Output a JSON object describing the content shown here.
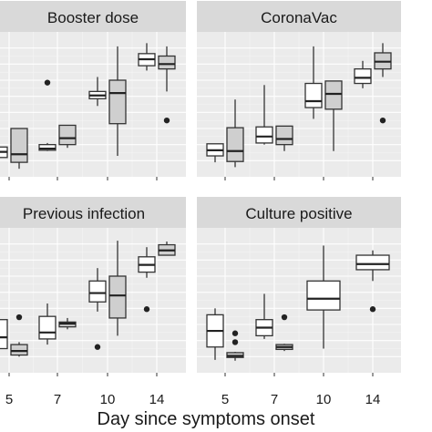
{
  "chart_data": {
    "type": "boxplot",
    "xlabel": "Day since symptoms onset",
    "x_categories": [
      "5",
      "7",
      "10",
      "14"
    ],
    "series_fills": {
      "a": "#ffffff",
      "b": "#cfcfcf"
    },
    "grid": true,
    "panels": [
      {
        "title": "Booster dose",
        "boxes": [
          {
            "day": "5",
            "group": "a",
            "min": 1.8,
            "q1": 2.2,
            "median": 2.55,
            "q3": 2.85,
            "max": 3.3,
            "outliers": []
          },
          {
            "day": "5",
            "group": "b",
            "min": 1.5,
            "q1": 1.9,
            "median": 2.4,
            "q3": 4.0,
            "max": 4.0,
            "outliers": []
          },
          {
            "day": "7",
            "group": "a",
            "min": 2.6,
            "q1": 2.65,
            "median": 2.75,
            "q3": 3.0,
            "max": 3.1,
            "outliers": [
              6.85
            ]
          },
          {
            "day": "7",
            "group": "b",
            "min": 2.8,
            "q1": 3.0,
            "median": 3.4,
            "q3": 4.2,
            "max": 4.2,
            "outliers": []
          },
          {
            "day": "10",
            "group": "a",
            "min": 5.4,
            "q1": 5.85,
            "median": 6.05,
            "q3": 6.3,
            "max": 7.2,
            "outliers": []
          },
          {
            "day": "10",
            "group": "b",
            "min": 2.3,
            "q1": 4.3,
            "median": 6.2,
            "q3": 7.0,
            "max": 9.1,
            "outliers": []
          },
          {
            "day": "14",
            "group": "a",
            "min": 7.6,
            "q1": 7.9,
            "median": 8.3,
            "q3": 8.65,
            "max": 9.3,
            "outliers": []
          },
          {
            "day": "14",
            "group": "b",
            "min": 6.3,
            "q1": 7.7,
            "median": 8.0,
            "q3": 8.5,
            "max": 9.1,
            "outliers": [
              4.5
            ]
          }
        ]
      },
      {
        "title": "CoronaVac",
        "boxes": [
          {
            "day": "5",
            "group": "a",
            "min": 1.9,
            "q1": 2.3,
            "median": 2.65,
            "q3": 3.05,
            "max": 3.05,
            "outliers": []
          },
          {
            "day": "5",
            "group": "b",
            "min": 1.6,
            "q1": 1.95,
            "median": 2.6,
            "q3": 4.05,
            "max": 5.8,
            "outliers": []
          },
          {
            "day": "7",
            "group": "a",
            "min": 3.0,
            "q1": 3.1,
            "median": 3.5,
            "q3": 4.1,
            "max": 6.7,
            "outliers": []
          },
          {
            "day": "7",
            "group": "b",
            "min": 2.6,
            "q1": 3.0,
            "median": 3.35,
            "q3": 4.15,
            "max": 4.15,
            "outliers": []
          },
          {
            "day": "10",
            "group": "a",
            "min": 4.6,
            "q1": 5.3,
            "median": 5.7,
            "q3": 6.8,
            "max": 9.1,
            "outliers": []
          },
          {
            "day": "10",
            "group": "b",
            "min": 2.6,
            "q1": 5.2,
            "median": 6.15,
            "q3": 6.95,
            "max": 6.95,
            "outliers": []
          },
          {
            "day": "14",
            "group": "a",
            "min": 6.5,
            "q1": 6.8,
            "median": 7.15,
            "q3": 7.7,
            "max": 8.2,
            "outliers": []
          },
          {
            "day": "14",
            "group": "b",
            "min": 7.2,
            "q1": 7.7,
            "median": 8.15,
            "q3": 8.7,
            "max": 9.3,
            "outliers": [
              4.5
            ]
          }
        ]
      },
      {
        "title": "Previous infection",
        "boxes": [
          {
            "day": "5",
            "group": "a",
            "min": 1.8,
            "q1": 2.5,
            "median": 3.2,
            "q3": 4.3,
            "max": 4.3,
            "outliers": []
          },
          {
            "day": "5",
            "group": "b",
            "min": 2.0,
            "q1": 2.1,
            "median": 2.35,
            "q3": 2.75,
            "max": 2.9,
            "outliers": [
              4.45
            ]
          },
          {
            "day": "7",
            "group": "a",
            "min": 2.75,
            "q1": 3.1,
            "median": 3.5,
            "q3": 4.5,
            "max": 5.3,
            "outliers": []
          },
          {
            "day": "7",
            "group": "b",
            "min": 3.7,
            "q1": 3.85,
            "median": 4.05,
            "q3": 4.15,
            "max": 4.4,
            "outliers": []
          },
          {
            "day": "10",
            "group": "a",
            "min": 4.8,
            "q1": 5.4,
            "median": 5.95,
            "q3": 6.7,
            "max": 7.5,
            "outliers": [
              2.6
            ]
          },
          {
            "day": "10",
            "group": "b",
            "min": 3.3,
            "q1": 4.4,
            "median": 5.8,
            "q3": 7.0,
            "max": 9.2,
            "outliers": []
          },
          {
            "day": "14",
            "group": "a",
            "min": 6.9,
            "q1": 7.25,
            "median": 7.7,
            "q3": 8.2,
            "max": 8.8,
            "outliers": [
              4.95
            ]
          },
          {
            "day": "14",
            "group": "b",
            "min": 8.3,
            "q1": 8.3,
            "median": 8.6,
            "q3": 8.95,
            "max": 9.15,
            "outliers": []
          }
        ]
      },
      {
        "title": "Culture positive",
        "boxes": [
          {
            "day": "5",
            "group": "a",
            "min": 1.8,
            "q1": 2.6,
            "median": 3.6,
            "q3": 4.6,
            "max": 5.0,
            "outliers": []
          },
          {
            "day": "5",
            "group": "b",
            "min": 1.75,
            "q1": 1.95,
            "median": 2.05,
            "q3": 2.25,
            "max": 2.3,
            "outliers": [
              3.45,
              2.9
            ]
          },
          {
            "day": "7",
            "group": "a",
            "min": 3.1,
            "q1": 3.3,
            "median": 3.8,
            "q3": 4.3,
            "max": 5.9,
            "outliers": []
          },
          {
            "day": "7",
            "group": "b",
            "min": 2.35,
            "q1": 2.45,
            "median": 2.6,
            "q3": 2.75,
            "max": 2.8,
            "outliers": [
              4.45
            ]
          },
          {
            "day": "10",
            "group": "a",
            "min": 2.5,
            "q1": 4.9,
            "median": 5.6,
            "q3": 6.7,
            "max": 8.9,
            "outliers": []
          },
          {
            "day": "14",
            "group": "a",
            "min": 6.7,
            "q1": 7.4,
            "median": 7.75,
            "q3": 8.3,
            "max": 8.6,
            "outliers": [
              4.95
            ]
          }
        ]
      }
    ]
  }
}
